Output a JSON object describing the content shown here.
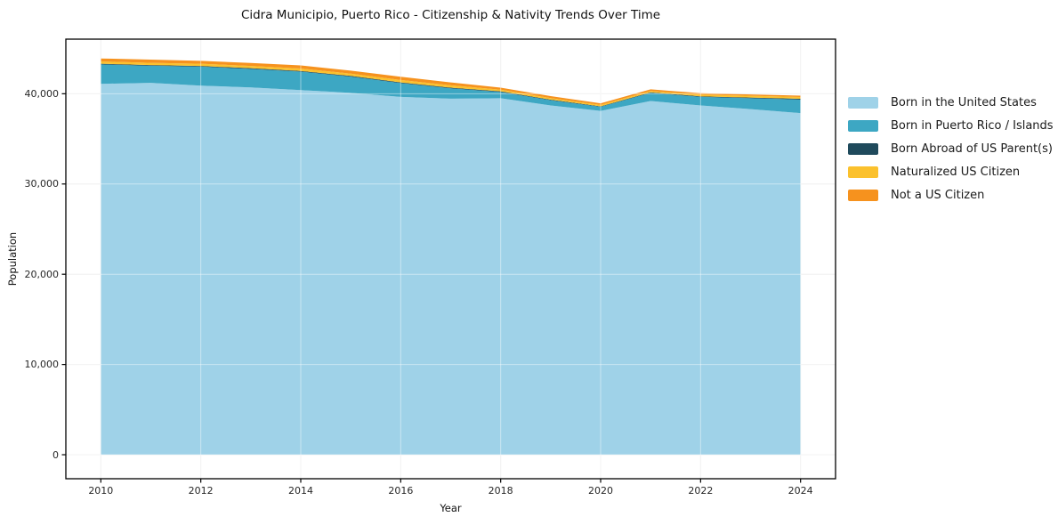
{
  "title": "Cidra Municipio, Puerto Rico - Citizenship & Nativity Trends Over Time",
  "chart_data": {
    "type": "area",
    "stacked": true,
    "title": "Cidra Municipio, Puerto Rico - Citizenship & Nativity Trends Over Time",
    "xlabel": "Year",
    "ylabel": "Population",
    "grid": true,
    "legend_position": "right",
    "x": [
      2010,
      2011,
      2012,
      2013,
      2014,
      2015,
      2016,
      2017,
      2018,
      2019,
      2020,
      2021,
      2022,
      2023,
      2024
    ],
    "series": [
      {
        "name": "Born in the United States",
        "color": "#9FD2E8",
        "values": [
          41100,
          41200,
          40900,
          40700,
          40400,
          40100,
          39650,
          39450,
          39500,
          38700,
          38100,
          39200,
          38700,
          38300,
          37850
        ]
      },
      {
        "name": "Born in Puerto Rico / Islands",
        "color": "#3DA7C3",
        "values": [
          2150,
          1900,
          2100,
          2050,
          2050,
          1800,
          1530,
          1150,
          700,
          580,
          450,
          900,
          950,
          1200,
          1500
        ]
      },
      {
        "name": "Born Abroad of US Parent(s)",
        "color": "#1F4A5C",
        "values": [
          80,
          80,
          80,
          80,
          80,
          80,
          80,
          80,
          70,
          70,
          60,
          60,
          70,
          80,
          90
        ]
      },
      {
        "name": "Naturalized US Citizen",
        "color": "#FBC12D",
        "values": [
          250,
          250,
          250,
          250,
          260,
          250,
          270,
          250,
          180,
          170,
          150,
          150,
          180,
          200,
          200
        ]
      },
      {
        "name": "Not a US Citizen",
        "color": "#F6921E",
        "values": [
          330,
          350,
          320,
          330,
          350,
          330,
          350,
          330,
          220,
          220,
          180,
          180,
          160,
          150,
          150
        ]
      }
    ],
    "xlim": [
      2009.3,
      2024.7
    ],
    "ylim": [
      -2660,
      46050
    ],
    "x_ticks": [
      2010,
      2012,
      2014,
      2016,
      2018,
      2020,
      2022,
      2024
    ],
    "x_tick_labels": [
      "2010",
      "2012",
      "2014",
      "2016",
      "2018",
      "2020",
      "2022",
      "2024"
    ],
    "y_ticks": [
      0,
      10000,
      20000,
      30000,
      40000
    ],
    "y_tick_labels": [
      "0",
      "10,000",
      "20,000",
      "30,000",
      "40,000"
    ]
  },
  "colors": {
    "axis": "#000000",
    "gridline": "rgba(255,255,255,0.45)",
    "gridline_outside": "#e9e9e9",
    "background": "#ffffff"
  }
}
